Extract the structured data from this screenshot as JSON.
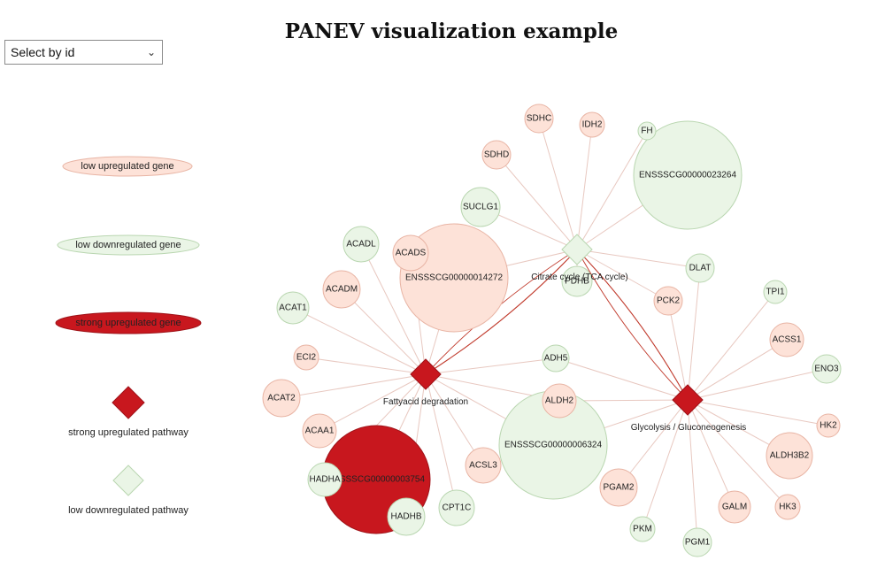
{
  "title": "PANEV visualization example",
  "select": {
    "selected": "Select by id"
  },
  "colors": {
    "low_up_fill": "#fde2d8",
    "low_up_stroke": "#e8b4a4",
    "low_down_fill": "#eaf5e6",
    "low_down_stroke": "#b9d6b0",
    "strong_up_fill": "#c8171e",
    "strong_up_stroke": "#9e1218",
    "edge": "#e8c8c0",
    "edge_strong": "#c0392b"
  },
  "legend": [
    {
      "label": "low upregulated gene",
      "kind": "gene",
      "class": "low_up"
    },
    {
      "label": "low downregulated gene",
      "kind": "gene",
      "class": "low_down"
    },
    {
      "label": "strong upregulated gene",
      "kind": "gene",
      "class": "strong_up"
    },
    {
      "label": "strong upregulated pathway",
      "kind": "pathway",
      "class": "strong_up"
    },
    {
      "label": "low downregulated pathway",
      "kind": "pathway",
      "class": "low_down"
    }
  ],
  "pathways": [
    {
      "id": "fatty",
      "label": "Fattyacid degradation",
      "class": "strong_up"
    },
    {
      "id": "citrate",
      "label": "Citrate cycle (TCA cycle)",
      "class": "low_down"
    },
    {
      "id": "glyco",
      "label": "Glycolysis / Gluconeogenesis",
      "class": "strong_up"
    }
  ],
  "genes": [
    {
      "label": "SDHC",
      "class": "low_up"
    },
    {
      "label": "IDH2",
      "class": "low_up"
    },
    {
      "label": "FH",
      "class": "low_down"
    },
    {
      "label": "ENSSSCG00000023264",
      "class": "low_down"
    },
    {
      "label": "SDHD",
      "class": "low_up"
    },
    {
      "label": "SUCLG1",
      "class": "low_down"
    },
    {
      "label": "ENSSSCG00000014272",
      "class": "low_up"
    },
    {
      "label": "ACADS",
      "class": "low_up"
    },
    {
      "label": "ACADL",
      "class": "low_down"
    },
    {
      "label": "DLAT",
      "class": "low_down"
    },
    {
      "label": "PCK2",
      "class": "low_up"
    },
    {
      "label": "TPI1",
      "class": "low_down"
    },
    {
      "label": "ACADM",
      "class": "low_up"
    },
    {
      "label": "ACAT1",
      "class": "low_down"
    },
    {
      "label": "ACSS1",
      "class": "low_up"
    },
    {
      "label": "ECI2",
      "class": "low_up"
    },
    {
      "label": "ADH5",
      "class": "low_down"
    },
    {
      "label": "ENO3",
      "class": "low_down"
    },
    {
      "label": "ACAT2",
      "class": "low_up"
    },
    {
      "label": "ALDH2",
      "class": "low_up"
    },
    {
      "label": "ENSSSCG00000006324",
      "class": "low_down"
    },
    {
      "label": "ACAA1",
      "class": "low_up"
    },
    {
      "label": "HK2",
      "class": "low_up"
    },
    {
      "label": "ENSSSCG00000003754",
      "class": "strong_up"
    },
    {
      "label": "HADHA",
      "class": "low_down"
    },
    {
      "label": "HADHB",
      "class": "low_down"
    },
    {
      "label": "ACSL3",
      "class": "low_up"
    },
    {
      "label": "ALDH3B2",
      "class": "low_up"
    },
    {
      "label": "PGAM2",
      "class": "low_up"
    },
    {
      "label": "CPT1C",
      "class": "low_down"
    },
    {
      "label": "GALM",
      "class": "low_up"
    },
    {
      "label": "HK3",
      "class": "low_up"
    },
    {
      "label": "PKM",
      "class": "low_down"
    },
    {
      "label": "PGM1",
      "class": "low_down"
    },
    {
      "label": "PDHB",
      "class": "low_down"
    }
  ],
  "edges": [
    [
      "SDHC",
      "citrate"
    ],
    [
      "IDH2",
      "citrate"
    ],
    [
      "FH",
      "citrate"
    ],
    [
      "ENSSSCG00000023264",
      "citrate"
    ],
    [
      "SDHD",
      "citrate"
    ],
    [
      "SUCLG1",
      "citrate"
    ],
    [
      "DLAT",
      "citrate"
    ],
    [
      "PCK2",
      "citrate"
    ],
    [
      "PDHB",
      "citrate"
    ],
    [
      "ENSSSCG00000014272",
      "citrate"
    ],
    [
      "ACADL",
      "fatty"
    ],
    [
      "ACADS",
      "fatty"
    ],
    [
      "ACADM",
      "fatty"
    ],
    [
      "ACAT1",
      "fatty"
    ],
    [
      "ECI2",
      "fatty"
    ],
    [
      "ACAT2",
      "fatty"
    ],
    [
      "ACAA1",
      "fatty"
    ],
    [
      "HADHA",
      "fatty"
    ],
    [
      "HADHB",
      "fatty"
    ],
    [
      "CPT1C",
      "fatty"
    ],
    [
      "ACSL3",
      "fatty"
    ],
    [
      "ENSSSCG00000003754",
      "fatty"
    ],
    [
      "ENSSSCG00000014272",
      "fatty"
    ],
    [
      "ADH5",
      "fatty"
    ],
    [
      "ALDH2",
      "fatty"
    ],
    [
      "ENSSSCG00000006324",
      "fatty"
    ],
    [
      "ADH5",
      "glyco"
    ],
    [
      "ALDH2",
      "glyco"
    ],
    [
      "ENSSSCG00000006324",
      "glyco"
    ],
    [
      "PCK2",
      "glyco"
    ],
    [
      "DLAT",
      "glyco"
    ],
    [
      "TPI1",
      "glyco"
    ],
    [
      "ACSS1",
      "glyco"
    ],
    [
      "ENO3",
      "glyco"
    ],
    [
      "HK2",
      "glyco"
    ],
    [
      "ALDH3B2",
      "glyco"
    ],
    [
      "HK3",
      "glyco"
    ],
    [
      "GALM",
      "glyco"
    ],
    [
      "PGM1",
      "glyco"
    ],
    [
      "PKM",
      "glyco"
    ],
    [
      "PGAM2",
      "glyco"
    ],
    [
      "ACSS1",
      "glyco"
    ],
    [
      "fatty",
      "citrate"
    ],
    [
      "glyco",
      "citrate"
    ]
  ]
}
